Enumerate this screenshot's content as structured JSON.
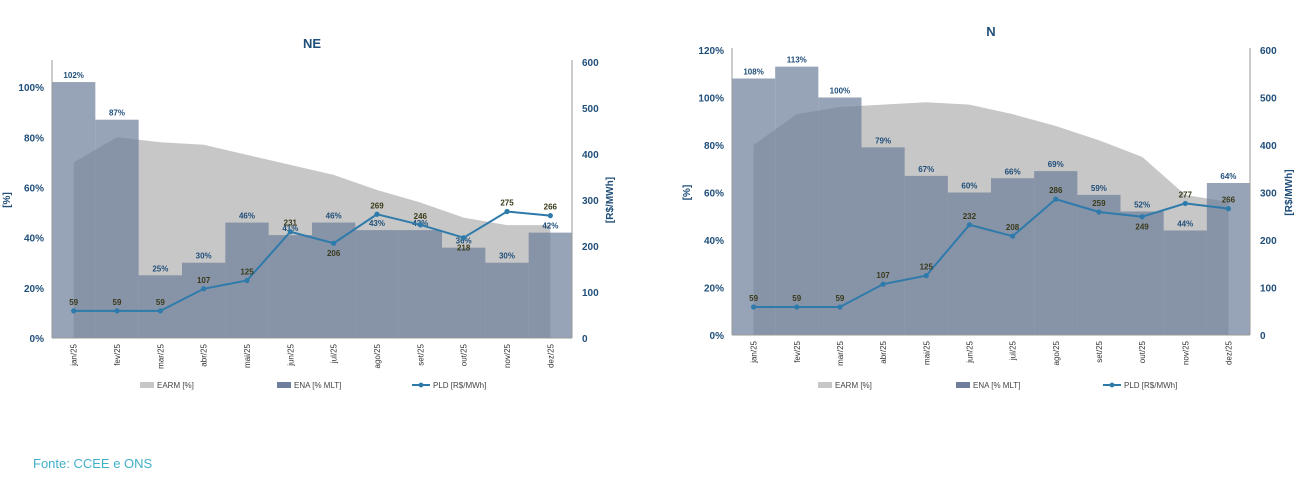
{
  "source": "Fonte: CCEE e ONS",
  "colors": {
    "earm": "#c7c7c7",
    "ena": "#6f7f9b",
    "ena_opacity": 0.72,
    "pld": "#2e7bab",
    "title": "#1f4e79",
    "axis_text": "#1f4e79",
    "value_label_ena": "#1f4e79",
    "value_label_pld": "#3a3a1a"
  },
  "chart_data": [
    {
      "type": "bar",
      "title": "NE",
      "ylabel": "[%]",
      "y2label": "[R$/MWh]",
      "ylim": [
        0,
        1.1
      ],
      "y_ticks": [
        "0%",
        "20%",
        "40%",
        "60%",
        "80%",
        "100%"
      ],
      "y2lim": [
        0,
        600
      ],
      "y2_ticks": [
        "0",
        "100",
        "200",
        "300",
        "400",
        "500",
        "600"
      ],
      "categories": [
        "jan/25",
        "fev/25",
        "mar/25",
        "abr/25",
        "mai/25",
        "jun/25",
        "jul/25",
        "ago/25",
        "set/25",
        "out/25",
        "nov/25",
        "dez/25"
      ],
      "series": [
        {
          "name": "EARM [%]",
          "kind": "area",
          "values": [
            0.7,
            0.8,
            0.78,
            0.77,
            0.73,
            0.69,
            0.65,
            0.59,
            0.54,
            0.48,
            0.45,
            0.45
          ]
        },
        {
          "name": "ENA [% MLT]",
          "kind": "bar",
          "values": [
            102,
            87,
            25,
            30,
            46,
            41,
            46,
            43,
            43,
            36,
            30,
            42
          ],
          "labels": [
            "102%",
            "87%",
            "25%",
            "30%",
            "46%",
            "41%",
            "46%",
            "43%",
            "43%",
            "36%",
            "30%",
            "42%"
          ]
        },
        {
          "name": "PLD [R$/MWh]",
          "kind": "line",
          "axis": "right",
          "values": [
            59,
            59,
            59,
            107,
            125,
            231,
            206,
            269,
            246,
            218,
            275,
            266
          ],
          "labels": [
            "59",
            "59",
            "59",
            "107",
            "125",
            "231",
            "206",
            "269",
            "246",
            "218",
            "275",
            "266"
          ]
        }
      ],
      "legend": [
        "EARM [%]",
        "ENA [% MLT]",
        "PLD [R$/MWh]"
      ],
      "legend_position": "bottom"
    },
    {
      "type": "bar",
      "title": "N",
      "ylabel": "[%]",
      "y2label": "[R$/MWh]",
      "ylim": [
        0,
        1.2
      ],
      "y_ticks": [
        "0%",
        "20%",
        "40%",
        "60%",
        "80%",
        "100%",
        "120%"
      ],
      "y2lim": [
        0,
        600
      ],
      "y2_ticks": [
        "0",
        "100",
        "200",
        "300",
        "400",
        "500",
        "600"
      ],
      "categories": [
        "jan/25",
        "fev/25",
        "mar/25",
        "abr/25",
        "mai/25",
        "jun/25",
        "jul/25",
        "ago/25",
        "set/25",
        "out/25",
        "nov/25",
        "dez/25"
      ],
      "series": [
        {
          "name": "EARM [%]",
          "kind": "area",
          "values": [
            0.8,
            0.93,
            0.96,
            0.97,
            0.98,
            0.97,
            0.93,
            0.88,
            0.82,
            0.75,
            0.59,
            0.56
          ]
        },
        {
          "name": "ENA [% MLT]",
          "kind": "bar",
          "values": [
            108,
            113,
            100,
            79,
            67,
            60,
            66,
            69,
            59,
            52,
            44,
            64
          ],
          "labels": [
            "108%",
            "113%",
            "100%",
            "79%",
            "67%",
            "60%",
            "66%",
            "69%",
            "59%",
            "52%",
            "44%",
            "64%"
          ]
        },
        {
          "name": "PLD [R$/MWh]",
          "kind": "line",
          "axis": "right",
          "values": [
            59,
            59,
            59,
            107,
            125,
            232,
            208,
            286,
            259,
            249,
            277,
            266
          ],
          "labels": [
            "59",
            "59",
            "59",
            "107",
            "125",
            "232",
            "208",
            "286",
            "259",
            "249",
            "277",
            "266"
          ]
        }
      ],
      "legend": [
        "EARM [%]",
        "ENA [% MLT]",
        "PLD [R$/MWh]"
      ],
      "legend_position": "bottom"
    }
  ]
}
